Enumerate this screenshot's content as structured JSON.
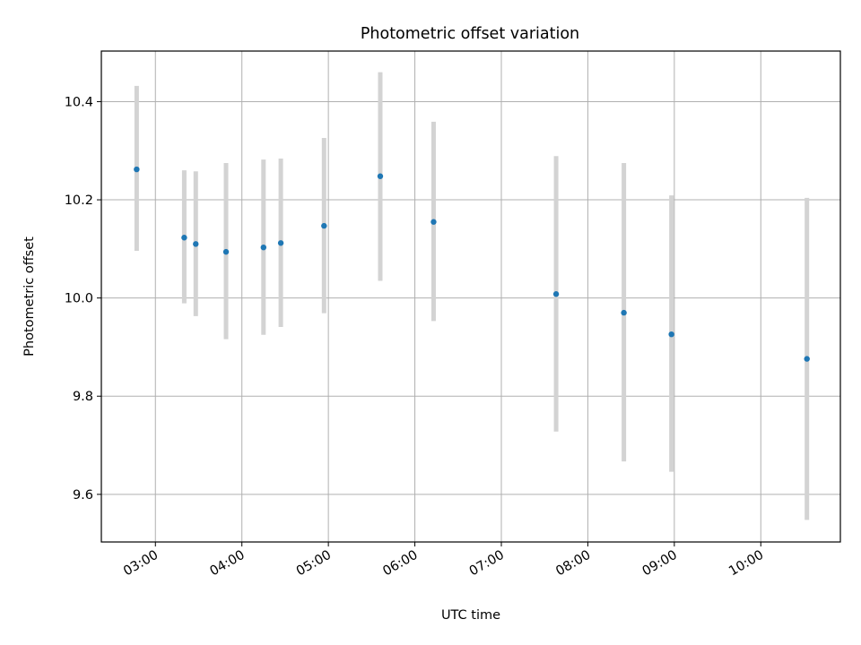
{
  "chart_data": {
    "type": "scatter",
    "title": "Photometric offset variation",
    "xlabel": "UTC time",
    "ylabel": "Photometric offset",
    "x_tick_labels": [
      "03:00",
      "04:00",
      "05:00",
      "06:00",
      "07:00",
      "08:00",
      "09:00",
      "10:00"
    ],
    "x_tick_hours": [
      3,
      4,
      5,
      6,
      7,
      8,
      9,
      10
    ],
    "y_ticks": [
      9.6,
      9.8,
      10.0,
      10.2,
      10.4
    ],
    "y_tick_labels": [
      "9.6",
      "9.8",
      "10.0",
      "10.2",
      "10.4"
    ],
    "xlim_hours": [
      2.375,
      10.92
    ],
    "ylim": [
      9.503,
      10.503
    ],
    "grid": true,
    "points": [
      {
        "time": "02:47",
        "y": 10.262,
        "err_low": 10.096,
        "err_high": 10.432
      },
      {
        "time": "03:20",
        "y": 10.123,
        "err_low": 9.989,
        "err_high": 10.26
      },
      {
        "time": "03:28",
        "y": 10.11,
        "err_low": 9.963,
        "err_high": 10.258
      },
      {
        "time": "03:49",
        "y": 10.094,
        "err_low": 9.916,
        "err_high": 10.275
      },
      {
        "time": "04:15",
        "y": 10.103,
        "err_low": 9.925,
        "err_high": 10.282
      },
      {
        "time": "04:27",
        "y": 10.112,
        "err_low": 9.941,
        "err_high": 10.284
      },
      {
        "time": "04:57",
        "y": 10.147,
        "err_low": 9.969,
        "err_high": 10.326
      },
      {
        "time": "05:36",
        "y": 10.248,
        "err_low": 10.035,
        "err_high": 10.46
      },
      {
        "time": "06:13",
        "y": 10.155,
        "err_low": 9.953,
        "err_high": 10.359
      },
      {
        "time": "07:38",
        "y": 10.008,
        "err_low": 9.728,
        "err_high": 10.289
      },
      {
        "time": "08:25",
        "y": 9.97,
        "err_low": 9.667,
        "err_high": 10.275
      },
      {
        "time": "08:58",
        "y": 9.926,
        "err_low": 9.646,
        "err_high": 10.209
      },
      {
        "time": "10:32",
        "y": 9.876,
        "err_low": 9.548,
        "err_high": 10.204
      }
    ],
    "colors": {
      "point": "#1f77b4",
      "errorbar": "#d3d3d3",
      "grid": "#b0b0b0"
    }
  }
}
